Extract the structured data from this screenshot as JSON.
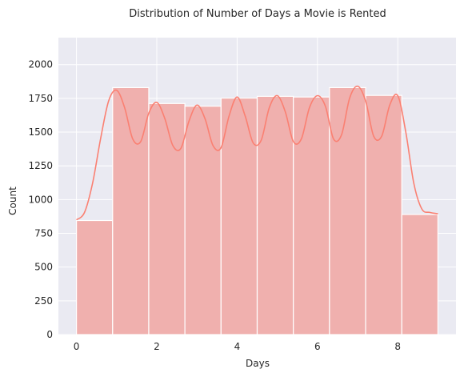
{
  "colors": {
    "plot_background": "#EAEAF2",
    "grid": "#FFFFFF",
    "bar_fill": "#F0B0AE",
    "bar_edge": "#FFFFFF",
    "kde_line": "#FA8072"
  },
  "chart_data": {
    "type": "bar",
    "subtype": "histogram-with-kde",
    "title": "Distribution of Number of Days a Movie is Rented",
    "xlabel": "Days",
    "ylabel": "Count",
    "xlim": [
      -0.45,
      9.45
    ],
    "ylim": [
      0,
      2200
    ],
    "xticks": [
      0,
      2,
      4,
      6,
      8
    ],
    "yticks": [
      0,
      250,
      500,
      750,
      1000,
      1250,
      1500,
      1750,
      2000
    ],
    "grid": true,
    "legend": "none",
    "bin_edges": [
      0,
      0.9,
      1.8,
      2.7,
      3.6,
      4.5,
      5.4,
      6.3,
      7.2,
      8.1,
      9.0
    ],
    "values": [
      845,
      1830,
      1712,
      1692,
      1752,
      1765,
      1760,
      1830,
      1772,
      890
    ],
    "kde": {
      "x": [
        0,
        0.2,
        0.4,
        0.6,
        0.8,
        1.0,
        1.2,
        1.4,
        1.6,
        1.8,
        2.0,
        2.2,
        2.4,
        2.6,
        2.8,
        3.0,
        3.2,
        3.4,
        3.6,
        3.8,
        4.0,
        4.2,
        4.4,
        4.6,
        4.8,
        5.0,
        5.2,
        5.4,
        5.6,
        5.8,
        6.0,
        6.2,
        6.4,
        6.6,
        6.8,
        7.0,
        7.2,
        7.4,
        7.6,
        7.8,
        8.0,
        8.2,
        8.4,
        8.6,
        8.8,
        9.0
      ],
      "y": [
        850,
        905,
        1120,
        1450,
        1730,
        1810,
        1680,
        1450,
        1430,
        1640,
        1720,
        1600,
        1400,
        1380,
        1580,
        1700,
        1600,
        1400,
        1385,
        1620,
        1760,
        1620,
        1420,
        1440,
        1680,
        1770,
        1650,
        1430,
        1450,
        1680,
        1770,
        1690,
        1450,
        1480,
        1750,
        1840,
        1730,
        1470,
        1470,
        1700,
        1770,
        1500,
        1120,
        930,
        905,
        895
      ]
    }
  }
}
